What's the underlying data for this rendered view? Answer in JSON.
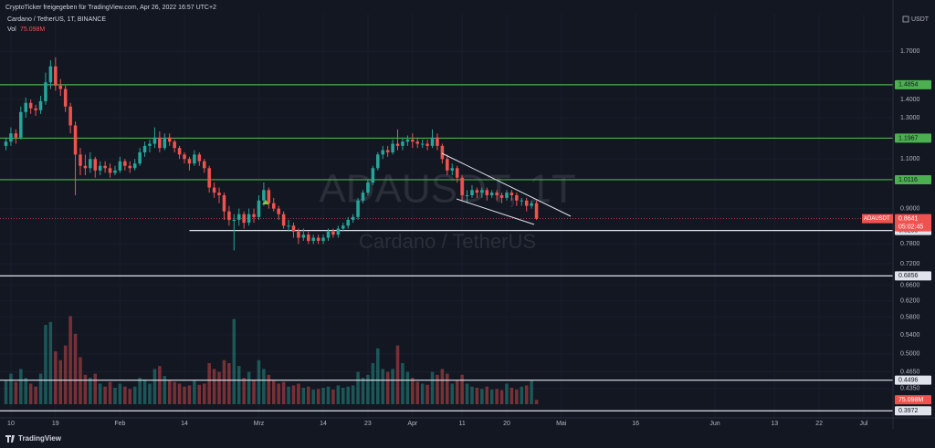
{
  "header": {
    "shared_by": "CryptoTicker freigegeben für TradingView.com, Apr 26, 2022 16:57 UTC+2",
    "symbol": "Cardano / TetherUS, 1T, BINANCE",
    "vol_label": "Vol",
    "vol_value": "75.098M"
  },
  "chart_data": {
    "type": "candlestick",
    "watermark": "ADAUSDT, 1T",
    "watermark_sub": "Cardano / TetherUS",
    "currency": "USDT",
    "log_scale": true,
    "grid": true,
    "up_color": "#26a69a",
    "down_color": "#ef5350",
    "x": [
      -1,
      0,
      1,
      2,
      3,
      4,
      5,
      6,
      7,
      8,
      9,
      10,
      11,
      12,
      13,
      14,
      15,
      16,
      17,
      18,
      19,
      20,
      21,
      22,
      23,
      24,
      25,
      26,
      27,
      28,
      29,
      30,
      31,
      32,
      33,
      34,
      35,
      36,
      37,
      38,
      39,
      40,
      41,
      42,
      43,
      44,
      45,
      46,
      47,
      48,
      49,
      50,
      51,
      52,
      53,
      54,
      55,
      56,
      57,
      58,
      59,
      60,
      61,
      62,
      63,
      64,
      65,
      66,
      67,
      68,
      69,
      70,
      71,
      72,
      73,
      74,
      75,
      76,
      77,
      78,
      79,
      80,
      81,
      82,
      83,
      84,
      85,
      86,
      87,
      88,
      89,
      90,
      91,
      92,
      93,
      94,
      95,
      96,
      97,
      98,
      99,
      100,
      101,
      102,
      103,
      104,
      105,
      106
    ],
    "xlim": [
      -2.2,
      177.9
    ],
    "xticks": [
      {
        "value": 0,
        "label": "10"
      },
      {
        "value": 9,
        "label": "19"
      },
      {
        "value": 22,
        "label": "Feb"
      },
      {
        "value": 35,
        "label": "14"
      },
      {
        "value": 50,
        "label": "Mrz"
      },
      {
        "value": 63,
        "label": "14"
      },
      {
        "value": 72,
        "label": "23"
      },
      {
        "value": 81,
        "label": "Apr"
      },
      {
        "value": 91,
        "label": "11"
      },
      {
        "value": 100,
        "label": "20"
      },
      {
        "value": 111,
        "label": "Mai"
      },
      {
        "value": 126,
        "label": "16"
      },
      {
        "value": 142,
        "label": "Jun"
      },
      {
        "value": 154,
        "label": "13"
      },
      {
        "value": 163,
        "label": "22"
      },
      {
        "value": 172,
        "label": "Jul"
      }
    ],
    "ylim": [
      0.386,
      1.98
    ],
    "yticks": [
      {
        "value": 1.7,
        "label": "1.7000"
      },
      {
        "value": 1.4,
        "label": "1.4000"
      },
      {
        "value": 1.3,
        "label": "1.3000"
      },
      {
        "value": 1.1,
        "label": "1.1000"
      },
      {
        "value": 0.9,
        "label": "0.9000"
      },
      {
        "value": 0.78,
        "label": "0.7800"
      },
      {
        "value": 0.72,
        "label": "0.7200"
      },
      {
        "value": 0.66,
        "label": "0.6600"
      },
      {
        "value": 0.62,
        "label": "0.6200"
      },
      {
        "value": 0.58,
        "label": "0.5800"
      },
      {
        "value": 0.54,
        "label": "0.5400"
      },
      {
        "value": 0.5,
        "label": "0.5000"
      },
      {
        "value": 0.465,
        "label": "0.4650"
      },
      {
        "value": 0.435,
        "label": "0.4350"
      }
    ],
    "open": [
      1.16,
      1.18,
      1.22,
      1.2,
      1.33,
      1.38,
      1.35,
      1.34,
      1.39,
      1.5,
      1.6,
      1.48,
      1.46,
      1.36,
      1.26,
      1.12,
      1.07,
      1.06,
      1.1,
      1.05,
      1.07,
      1.06,
      1.04,
      1.05,
      1.09,
      1.07,
      1.06,
      1.08,
      1.13,
      1.16,
      1.17,
      1.2,
      1.15,
      1.2,
      1.18,
      1.15,
      1.12,
      1.1,
      1.08,
      1.12,
      1.09,
      1.06,
      0.98,
      0.96,
      0.95,
      0.89,
      0.86,
      0.86,
      0.88,
      0.85,
      0.88,
      0.87,
      0.93,
      0.97,
      0.92,
      0.9,
      0.88,
      0.84,
      0.84,
      0.82,
      0.8,
      0.81,
      0.79,
      0.8,
      0.79,
      0.8,
      0.82,
      0.81,
      0.83,
      0.84,
      0.86,
      0.87,
      0.93,
      0.96,
      1.0,
      1.06,
      1.12,
      1.14,
      1.13,
      1.17,
      1.16,
      1.18,
      1.19,
      1.18,
      1.17,
      1.17,
      1.16,
      1.2,
      1.16,
      1.1,
      1.05,
      1.06,
      1.02,
      0.95,
      0.95,
      0.97,
      0.96,
      0.97,
      0.95,
      0.96,
      0.95,
      0.94,
      0.96,
      0.95,
      0.93,
      0.93,
      0.91,
      0.92
    ],
    "high": [
      1.2,
      1.25,
      1.24,
      1.36,
      1.41,
      1.4,
      1.37,
      1.42,
      1.56,
      1.64,
      1.66,
      1.52,
      1.48,
      1.38,
      1.28,
      1.15,
      1.12,
      1.13,
      1.11,
      1.09,
      1.09,
      1.08,
      1.07,
      1.11,
      1.1,
      1.09,
      1.1,
      1.15,
      1.18,
      1.19,
      1.25,
      1.23,
      1.22,
      1.22,
      1.19,
      1.16,
      1.13,
      1.11,
      1.14,
      1.13,
      1.1,
      1.07,
      1.0,
      0.98,
      0.96,
      0.91,
      0.88,
      0.9,
      0.89,
      0.9,
      0.9,
      0.95,
      1.0,
      0.98,
      0.94,
      0.91,
      0.89,
      0.86,
      0.85,
      0.83,
      0.83,
      0.82,
      0.81,
      0.81,
      0.81,
      0.83,
      0.83,
      0.84,
      0.85,
      0.87,
      0.88,
      0.94,
      0.97,
      1.01,
      1.07,
      1.13,
      1.16,
      1.16,
      1.19,
      1.24,
      1.2,
      1.21,
      1.22,
      1.2,
      1.19,
      1.19,
      1.24,
      1.22,
      1.17,
      1.12,
      1.08,
      1.07,
      1.03,
      0.97,
      0.99,
      0.98,
      0.98,
      0.98,
      0.97,
      0.97,
      0.96,
      0.97,
      0.97,
      0.96,
      0.94,
      0.94,
      0.93,
      0.93
    ],
    "low": [
      1.14,
      1.16,
      1.17,
      1.19,
      1.3,
      1.32,
      1.31,
      1.32,
      1.37,
      1.46,
      1.45,
      1.42,
      1.33,
      1.22,
      0.95,
      1.03,
      1.03,
      1.04,
      1.02,
      1.03,
      1.04,
      1.02,
      1.03,
      1.04,
      1.05,
      1.04,
      1.05,
      1.07,
      1.11,
      1.13,
      1.15,
      1.13,
      1.14,
      1.16,
      1.13,
      1.1,
      1.08,
      1.05,
      1.07,
      1.07,
      1.04,
      0.96,
      0.94,
      0.92,
      0.86,
      0.84,
      0.76,
      0.84,
      0.83,
      0.84,
      0.85,
      0.86,
      0.91,
      0.9,
      0.89,
      0.86,
      0.83,
      0.82,
      0.8,
      0.78,
      0.79,
      0.78,
      0.78,
      0.78,
      0.78,
      0.79,
      0.8,
      0.8,
      0.82,
      0.83,
      0.85,
      0.86,
      0.92,
      0.95,
      0.99,
      1.05,
      1.1,
      1.11,
      1.12,
      1.14,
      1.14,
      1.16,
      1.15,
      1.15,
      1.15,
      1.14,
      1.15,
      1.14,
      1.08,
      1.03,
      1.03,
      1.0,
      0.93,
      0.92,
      0.94,
      0.94,
      0.94,
      0.93,
      0.94,
      0.93,
      0.92,
      0.93,
      0.93,
      0.91,
      0.91,
      0.89,
      0.9,
      0.86
    ],
    "close": [
      1.18,
      1.22,
      1.2,
      1.33,
      1.38,
      1.35,
      1.34,
      1.39,
      1.5,
      1.6,
      1.48,
      1.46,
      1.36,
      1.26,
      1.12,
      1.07,
      1.06,
      1.1,
      1.05,
      1.07,
      1.06,
      1.04,
      1.05,
      1.09,
      1.07,
      1.06,
      1.08,
      1.13,
      1.16,
      1.17,
      1.2,
      1.15,
      1.2,
      1.18,
      1.15,
      1.12,
      1.1,
      1.08,
      1.12,
      1.09,
      1.06,
      0.98,
      0.96,
      0.95,
      0.89,
      0.86,
      0.86,
      0.88,
      0.85,
      0.88,
      0.87,
      0.93,
      0.97,
      0.92,
      0.9,
      0.88,
      0.84,
      0.84,
      0.82,
      0.8,
      0.81,
      0.79,
      0.8,
      0.79,
      0.8,
      0.82,
      0.81,
      0.83,
      0.84,
      0.86,
      0.87,
      0.93,
      0.96,
      1.0,
      1.06,
      1.12,
      1.14,
      1.13,
      1.17,
      1.16,
      1.18,
      1.19,
      1.18,
      1.17,
      1.17,
      1.16,
      1.2,
      1.16,
      1.1,
      1.05,
      1.06,
      1.02,
      0.95,
      0.95,
      0.97,
      0.96,
      0.97,
      0.95,
      0.96,
      0.95,
      0.94,
      0.96,
      0.95,
      0.93,
      0.93,
      0.91,
      0.92,
      0.8641
    ],
    "volume": [
      400,
      520,
      380,
      600,
      450,
      350,
      300,
      520,
      1350,
      1400,
      900,
      750,
      1000,
      1500,
      1200,
      800,
      500,
      450,
      520,
      350,
      300,
      380,
      280,
      350,
      300,
      260,
      300,
      450,
      420,
      350,
      600,
      650,
      480,
      400,
      380,
      350,
      300,
      320,
      400,
      330,
      350,
      700,
      600,
      550,
      750,
      700,
      1450,
      650,
      450,
      550,
      420,
      750,
      600,
      500,
      400,
      350,
      380,
      300,
      320,
      350,
      280,
      300,
      250,
      260,
      280,
      300,
      250,
      320,
      280,
      300,
      320,
      550,
      450,
      500,
      700,
      950,
      600,
      550,
      600,
      1000,
      700,
      550,
      450,
      380,
      350,
      330,
      550,
      500,
      600,
      520,
      350,
      400,
      500,
      350,
      300,
      280,
      260,
      300,
      250,
      260,
      240,
      350,
      280,
      250,
      300,
      320,
      400,
      75.098
    ],
    "vol_ylim": [
      0,
      1600
    ],
    "hlines": [
      {
        "value": 1.4854,
        "color": "#4caf50"
      },
      {
        "value": 1.1967,
        "color": "#4caf50"
      },
      {
        "value": 1.0116,
        "color": "#4caf50"
      },
      {
        "value": 0.8238,
        "color": "#e0e3eb",
        "start": 36
      },
      {
        "value": 0.6856,
        "color": "#e0e3eb"
      },
      {
        "value": 0.4496,
        "color": "#e0e3eb"
      },
      {
        "value": 0.3972,
        "color": "#e0e3eb"
      }
    ],
    "last_price": {
      "symbol": "ADAUSDT",
      "value": 0.8641,
      "countdown": "05:02:45"
    }
  },
  "footer": {
    "brand": "TradingView"
  }
}
